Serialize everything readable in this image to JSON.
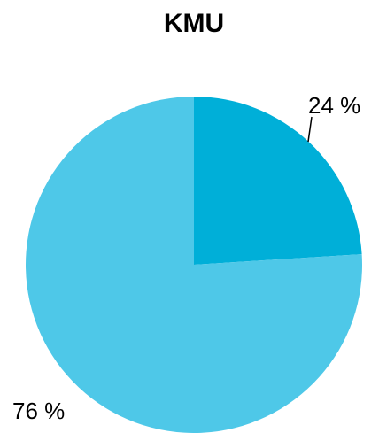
{
  "chart_data": {
    "type": "pie",
    "title": "KMU",
    "values": [
      24,
      76
    ],
    "value_labels": [
      "24 %",
      "76 %"
    ],
    "colors": [
      "#00afd8",
      "#4ec8e8"
    ]
  }
}
